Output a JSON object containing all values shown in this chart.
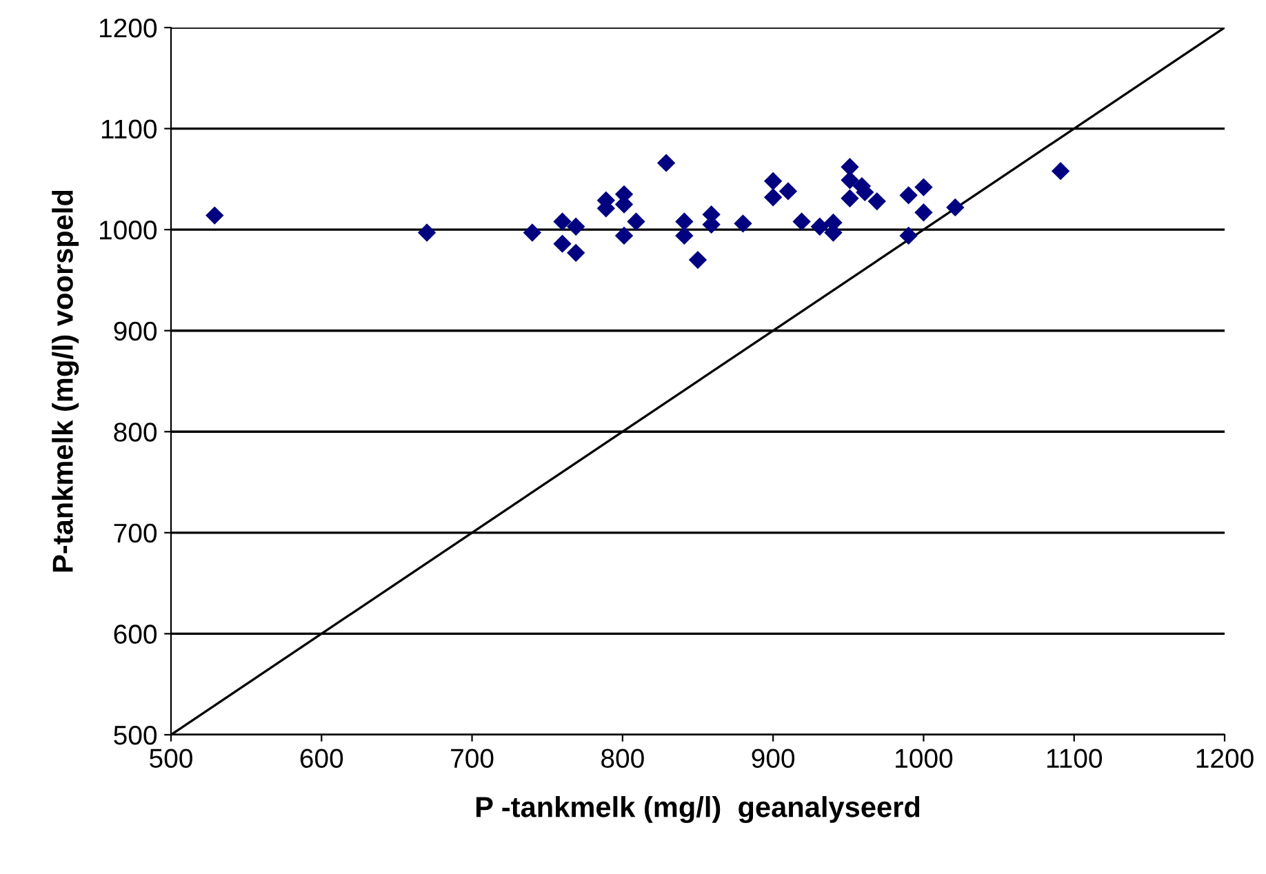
{
  "chart_data": {
    "type": "scatter",
    "xlabel": "P -tankmelk (mg/l)  geanalyseerd",
    "ylabel": "P-tankmelk (mg/l) voorspeld",
    "xlim": [
      500,
      1200
    ],
    "ylim": [
      500,
      1200
    ],
    "xticks": [
      500,
      600,
      700,
      800,
      900,
      1000,
      1100,
      1200
    ],
    "yticks": [
      500,
      600,
      700,
      800,
      900,
      1000,
      1100,
      1200
    ],
    "grid": "y",
    "marker": "diamond",
    "series": [
      {
        "color": "#000080",
        "x": [
          529,
          670,
          740,
          760,
          760,
          769,
          769,
          789,
          789,
          801,
          801,
          801,
          809,
          829,
          841,
          841,
          850,
          859,
          859,
          880,
          900,
          900,
          910,
          919,
          931,
          940,
          940,
          951,
          951,
          951,
          959,
          961,
          969,
          990,
          990,
          1000,
          1000,
          1021,
          1091
        ],
        "values": [
          1014,
          997,
          997,
          1008,
          986,
          1003,
          977,
          1029,
          1021,
          1035,
          1025,
          994,
          1008,
          1066,
          1008,
          994,
          970,
          1015,
          1005,
          1006,
          1048,
          1032,
          1038,
          1008,
          1003,
          1007,
          997,
          1062,
          1049,
          1031,
          1043,
          1037,
          1028,
          1034,
          994,
          1042,
          1017,
          1022,
          1058
        ]
      },
      {
        "type": "line",
        "color": "#000000",
        "x": [
          500,
          1200
        ],
        "values": [
          500,
          1200
        ],
        "marker": "none"
      }
    ]
  }
}
